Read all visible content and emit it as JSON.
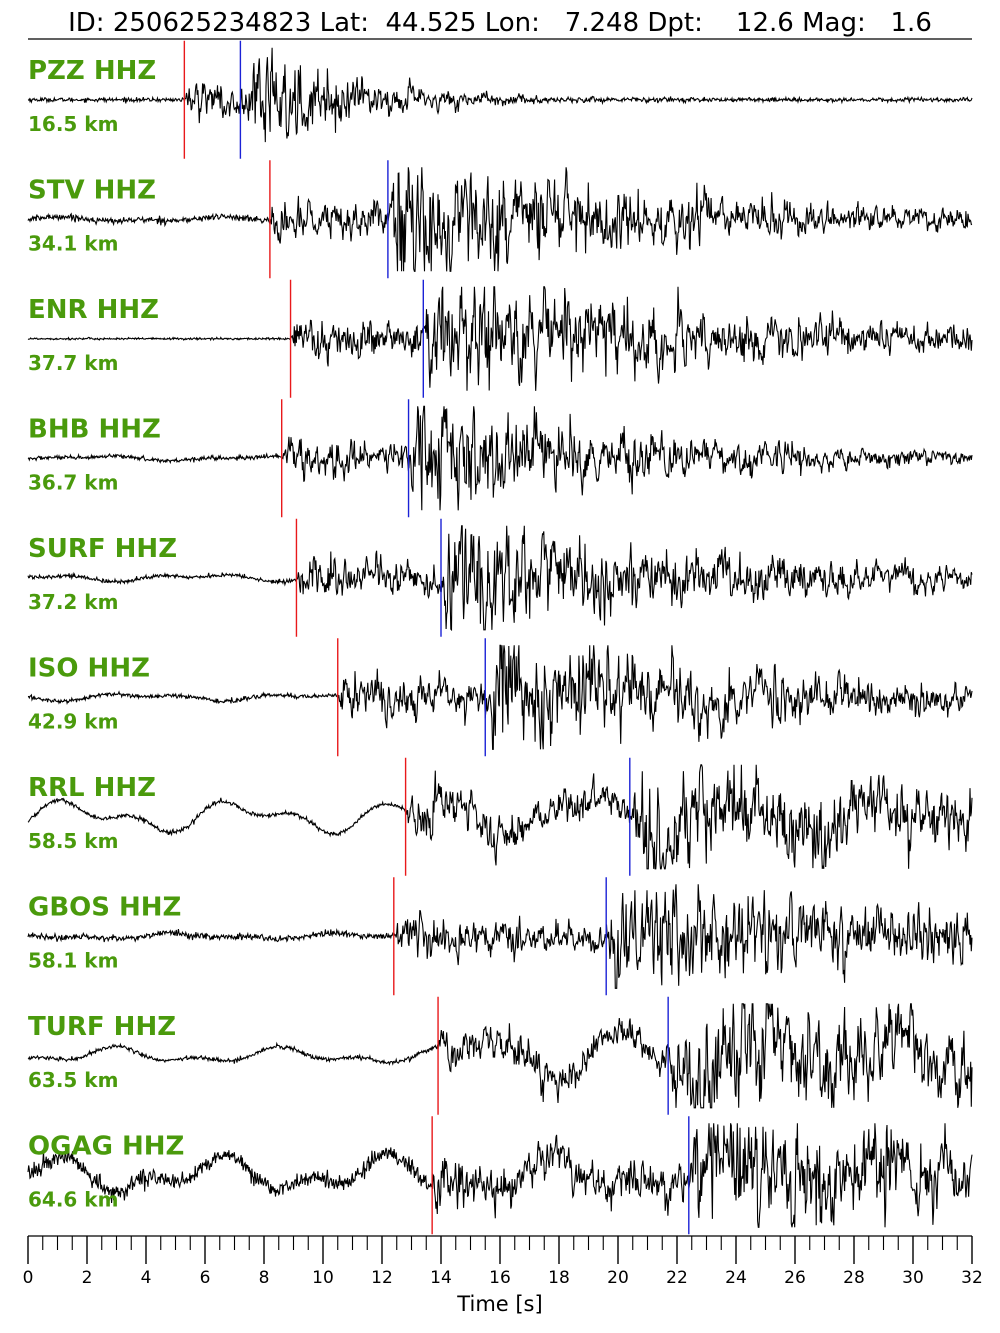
{
  "chart_data": {
    "type": "line",
    "title": "ID: 250625234823 Lat:  44.525 Lon:   7.248 Dpt:    12.6 Mag:   1.6",
    "event": {
      "id": "250625234823",
      "lat": 44.525,
      "lon": 7.248,
      "depth": 12.6,
      "magnitude": 1.6
    },
    "xlabel": "Time [s]",
    "xlim": [
      0,
      32
    ],
    "x_major_ticks": [
      0,
      2,
      4,
      6,
      8,
      10,
      12,
      14,
      16,
      18,
      20,
      22,
      24,
      26,
      28,
      30,
      32
    ],
    "x_major_tick_labels": [
      "0",
      "2",
      "4",
      "6",
      "8",
      "10",
      "12",
      "14",
      "16",
      "18",
      "20",
      "22",
      "24",
      "26",
      "28",
      "30",
      "32"
    ],
    "x_minor_step": 0.5,
    "grid": false,
    "colors": {
      "trace": "#000000",
      "p_pick": "#e8191b",
      "s_pick": "#1b22d6",
      "label": "#4a9a0c"
    },
    "traces": [
      {
        "station": "PZZ",
        "component": "HHZ",
        "label": "PZZ HHZ",
        "distance_label": "16.5 km",
        "p_time": 5.3,
        "s_time": 7.2,
        "pre_noise": 0.02,
        "pre_wave": 0.0,
        "amp": 1.0,
        "decay": 3.5,
        "late_wave": 0.0
      },
      {
        "station": "STV",
        "component": "HHZ",
        "label": "STV HHZ",
        "distance_label": "34.1 km",
        "p_time": 8.2,
        "s_time": 12.2,
        "pre_noise": 0.03,
        "pre_wave": 0.05,
        "amp": 1.0,
        "decay": 10.0,
        "late_wave": 0.0
      },
      {
        "station": "ENR",
        "component": "HHZ",
        "label": "ENR HHZ",
        "distance_label": "37.7 km",
        "p_time": 8.9,
        "s_time": 13.4,
        "pre_noise": 0.01,
        "pre_wave": 0.0,
        "amp": 1.0,
        "decay": 11.0,
        "late_wave": 0.0
      },
      {
        "station": "BHB",
        "component": "HHZ",
        "label": "BHB HHZ",
        "distance_label": "36.7 km",
        "p_time": 8.6,
        "s_time": 12.9,
        "pre_noise": 0.02,
        "pre_wave": 0.05,
        "amp": 1.0,
        "decay": 8.0,
        "late_wave": 0.0
      },
      {
        "station": "SURF",
        "component": "HHZ",
        "label": "SURF HHZ",
        "distance_label": "37.2 km",
        "p_time": 9.1,
        "s_time": 14.0,
        "pre_noise": 0.02,
        "pre_wave": 0.08,
        "amp": 1.0,
        "decay": 10.0,
        "late_wave": 0.0
      },
      {
        "station": "ISO",
        "component": "HHZ",
        "label": "ISO HHZ",
        "distance_label": "42.9 km",
        "p_time": 10.5,
        "s_time": 15.5,
        "pre_noise": 0.02,
        "pre_wave": 0.08,
        "amp": 1.0,
        "decay": 10.0,
        "late_wave": 0.0
      },
      {
        "station": "RRL",
        "component": "HHZ",
        "label": "RRL HHZ",
        "distance_label": "58.5 km",
        "p_time": 12.8,
        "s_time": 20.4,
        "pre_noise": 0.02,
        "pre_wave": 0.35,
        "amp": 1.0,
        "decay": 12.0,
        "late_wave": 0.2
      },
      {
        "station": "GBOS",
        "component": "HHZ",
        "label": "GBOS HHZ",
        "distance_label": "58.1 km",
        "p_time": 12.4,
        "s_time": 19.6,
        "pre_noise": 0.03,
        "pre_wave": 0.06,
        "amp": 1.0,
        "decay": 12.0,
        "late_wave": 0.0
      },
      {
        "station": "TURF",
        "component": "HHZ",
        "label": "TURF HHZ",
        "distance_label": "63.5 km",
        "p_time": 13.9,
        "s_time": 21.7,
        "pre_noise": 0.02,
        "pre_wave": 0.18,
        "amp": 1.0,
        "decay": 14.0,
        "late_wave": 0.35
      },
      {
        "station": "OGAG",
        "component": "HHZ",
        "label": "OGAG HHZ",
        "distance_label": "64.6 km",
        "p_time": 13.7,
        "s_time": 22.4,
        "pre_noise": 0.08,
        "pre_wave": 0.4,
        "amp": 1.0,
        "decay": 14.0,
        "late_wave": 0.0
      }
    ]
  }
}
